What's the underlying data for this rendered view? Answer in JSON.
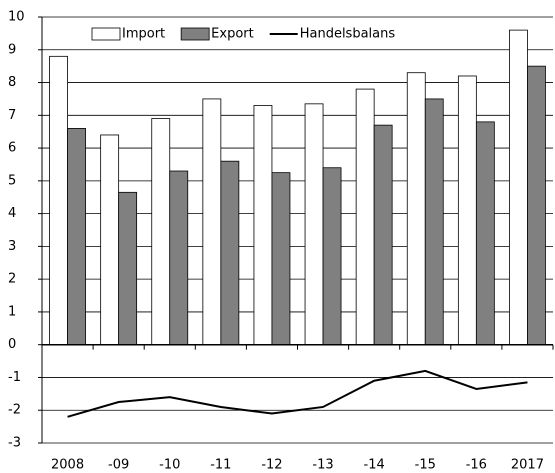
{
  "chart_data": {
    "type": "bar",
    "categories": [
      "2008",
      "-09",
      "-10",
      "-11",
      "-12",
      "-13",
      "-14",
      "-15",
      "-16",
      "2017"
    ],
    "series": [
      {
        "name": "Import",
        "color": "#ffffff",
        "values": [
          8.8,
          6.4,
          6.9,
          7.5,
          7.3,
          7.35,
          7.8,
          8.3,
          8.2,
          9.6
        ]
      },
      {
        "name": "Export",
        "color": "#808080",
        "values": [
          6.6,
          4.65,
          5.3,
          5.6,
          5.25,
          5.4,
          6.7,
          7.5,
          6.8,
          8.5
        ]
      },
      {
        "name": "Handelsbalans",
        "type": "line",
        "color": "#000000",
        "values": [
          -2.2,
          -1.75,
          -1.6,
          -1.9,
          -2.1,
          -1.9,
          -1.1,
          -0.8,
          -1.35,
          -1.15
        ]
      }
    ],
    "ylim": [
      -3,
      10
    ],
    "yticks": [
      -3,
      -2,
      -1,
      0,
      1,
      2,
      3,
      4,
      5,
      6,
      7,
      8,
      9,
      10
    ],
    "grid": true,
    "legend": "top"
  }
}
